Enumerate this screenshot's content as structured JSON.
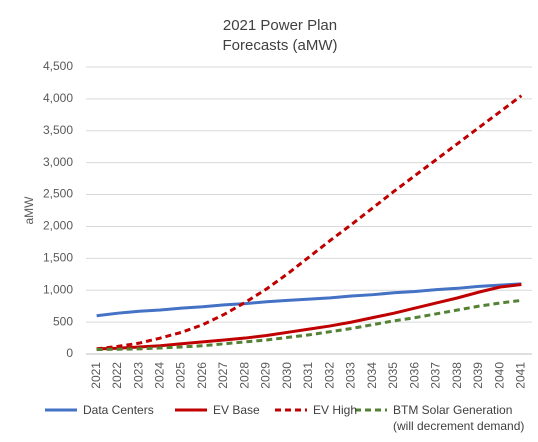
{
  "chart_data": {
    "type": "line",
    "title": "2021 Power Plan\nForecasts (aMW)",
    "y_label": "aMW",
    "categories": [
      "2021",
      "2022",
      "2023",
      "2024",
      "2025",
      "2026",
      "2027",
      "2028",
      "2029",
      "2030",
      "2031",
      "2032",
      "2033",
      "2034",
      "2035",
      "2036",
      "2037",
      "2038",
      "2039",
      "2040",
      "2041"
    ],
    "ylim": [
      0,
      4500
    ],
    "yticks": [
      0,
      500,
      {
        "value": 1000,
        "label": "1,000"
      },
      {
        "value": 1500,
        "label": "1,500"
      },
      {
        "value": 2000,
        "label": "2,000"
      },
      {
        "value": 2500,
        "label": "2,500"
      },
      {
        "value": 3000,
        "label": "3,000"
      },
      {
        "value": 3500,
        "label": "3,500"
      },
      {
        "value": 4000,
        "label": "4,000"
      },
      {
        "value": 4500,
        "label": "4,500"
      }
    ],
    "grid": true,
    "legend": "bottom",
    "series": [
      {
        "name": "Data Centers",
        "color": "#4472c4",
        "dash": "solid",
        "values": [
          600,
          640,
          670,
          690,
          720,
          740,
          770,
          790,
          820,
          840,
          860,
          880,
          910,
          930,
          960,
          980,
          1010,
          1030,
          1060,
          1080,
          1100
        ]
      },
      {
        "name": "EV Base",
        "color": "#c00000",
        "dash": "solid",
        "values": [
          80,
          90,
          110,
          130,
          160,
          190,
          220,
          250,
          290,
          340,
          390,
          440,
          500,
          570,
          640,
          720,
          800,
          880,
          970,
          1050,
          1090
        ]
      },
      {
        "name": "EV High",
        "color": "#c00000",
        "dash": "dashed",
        "values": [
          80,
          120,
          170,
          250,
          340,
          460,
          620,
          810,
          1020,
          1260,
          1520,
          1780,
          2030,
          2290,
          2550,
          2800,
          3050,
          3300,
          3550,
          3800,
          4050
        ]
      },
      {
        "name": "BTM Solar Generation\n(will decrement demand)",
        "color": "#548235",
        "dash": "dashed",
        "values": [
          70,
          75,
          80,
          95,
          110,
          130,
          160,
          190,
          220,
          260,
          300,
          350,
          400,
          460,
          520,
          570,
          630,
          690,
          750,
          800,
          840
        ]
      }
    ]
  }
}
